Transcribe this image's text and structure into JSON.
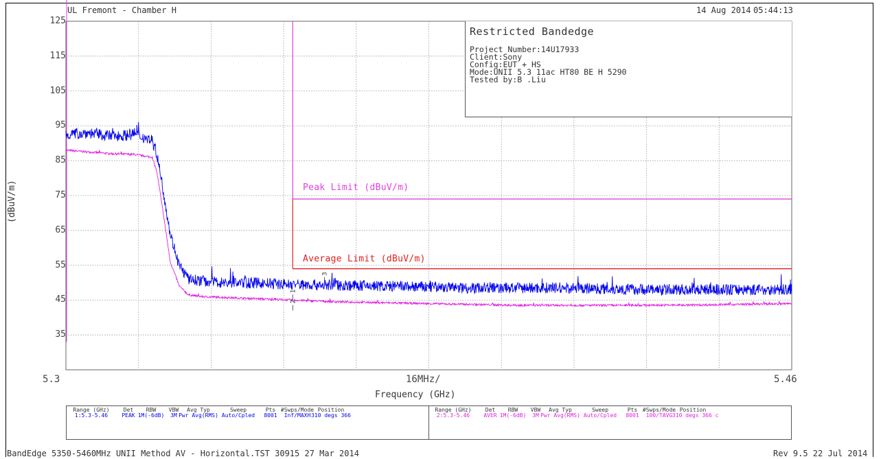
{
  "header": {
    "site": "UL Fremont - Chamber H",
    "date": "14 Aug 2014",
    "time": "05:44:13"
  },
  "info_box": {
    "title": "Restricted Bandedge",
    "lines": [
      "Project Number:14U17933",
      "Client:Sony",
      "Config:EUT + HS",
      "Mode:UNII 5.3 11ac HT80 BE H 5290",
      "Tested by:B .Liu"
    ]
  },
  "chart_data": {
    "type": "line",
    "title": "",
    "xlabel": "Frequency (GHz)",
    "ylabel": "(dBuV/m)",
    "x_span_label": "16MHz/",
    "x_tick_labels": [
      "5.3",
      "5.46"
    ],
    "y_tick_labels": [
      "125",
      "115",
      "105",
      "95",
      "85",
      "75",
      "65",
      "55",
      "45",
      "35"
    ],
    "xlim": [
      5.3,
      5.46
    ],
    "ylim": [
      25,
      125
    ],
    "grid": true,
    "band_edge_ghz": 5.35,
    "limits": [
      {
        "name": "Peak Limit (dBuV/m)",
        "value": 74,
        "color": "#e040e0"
      },
      {
        "name": "Average Limit (dBuV/m)",
        "value": 54,
        "color": "#e02020"
      }
    ],
    "markers": [
      {
        "label": "1",
        "x": 5.35,
        "y": 47
      },
      {
        "label": "2",
        "x": 5.35,
        "y": 44
      },
      {
        "label": "3",
        "x": 5.357,
        "y": 52
      }
    ],
    "series": [
      {
        "trace": "peak",
        "color": "#0000ee",
        "x": [
          5.3,
          5.305,
          5.31,
          5.315,
          5.319,
          5.32,
          5.321,
          5.322,
          5.323,
          5.325,
          5.327,
          5.33,
          5.335,
          5.34,
          5.35,
          5.37,
          5.39,
          5.41,
          5.43,
          5.45,
          5.46
        ],
        "y": [
          92.5,
          93.0,
          92.0,
          92.5,
          91.0,
          87.0,
          80.0,
          72.0,
          64.0,
          55.0,
          51.0,
          50.5,
          50.0,
          50.0,
          49.5,
          49.0,
          48.5,
          48.5,
          48.0,
          48.0,
          48.0
        ],
        "noise": 1.6
      },
      {
        "trace": "average",
        "color": "#e020e0",
        "x": [
          5.3,
          5.305,
          5.31,
          5.315,
          5.319,
          5.32,
          5.321,
          5.322,
          5.323,
          5.325,
          5.327,
          5.33,
          5.34,
          5.35,
          5.36,
          5.38,
          5.4,
          5.42,
          5.44,
          5.46
        ],
        "y": [
          88.0,
          87.5,
          87.0,
          86.8,
          86.0,
          82.0,
          74.0,
          65.0,
          56.0,
          49.0,
          46.5,
          46.0,
          45.5,
          45.0,
          44.5,
          44.0,
          43.5,
          43.5,
          43.6,
          44.0
        ],
        "noise": 0.3
      }
    ]
  },
  "settings_table": {
    "left": {
      "headers": [
        "Range (GHz)",
        "Det",
        "RBW",
        "VBW",
        "Avg Typ",
        "Sweep",
        "Pts",
        "#Swps/Mode",
        "Position"
      ],
      "values": [
        "1:5.3-5.46",
        "PEAK",
        "1M(-6dB)",
        "3M",
        "Pwr Avg(RMS)",
        "Auto/Cpled",
        "8001",
        "Inf/MAXH",
        "310 degs 366"
      ]
    },
    "right": {
      "headers": [
        "Range (GHz)",
        "Det",
        "RBW",
        "VBW",
        "Avg Typ",
        "Sweep",
        "Pts",
        "#Swps/Mode",
        "Position"
      ],
      "values": [
        "2:5.3-5.46",
        "AVER",
        "1M(-6dB)",
        "3M",
        "Pwr Avg(RMS)",
        "Auto/Cpled",
        "8001",
        "100/TAVG",
        "310 degs 366 c"
      ]
    }
  },
  "footer": {
    "left": "BandEdge 5350-5460MHz UNII Method AV - Horizontal.TST 30915 27 Mar 2014",
    "right": "Rev 9.5 22 Jul 2014"
  },
  "colors": {
    "peak_trace": "#0000ee",
    "average_trace": "#e020e0",
    "peak_limit": "#e040e0",
    "average_limit": "#e02020",
    "grid": "#999999"
  }
}
